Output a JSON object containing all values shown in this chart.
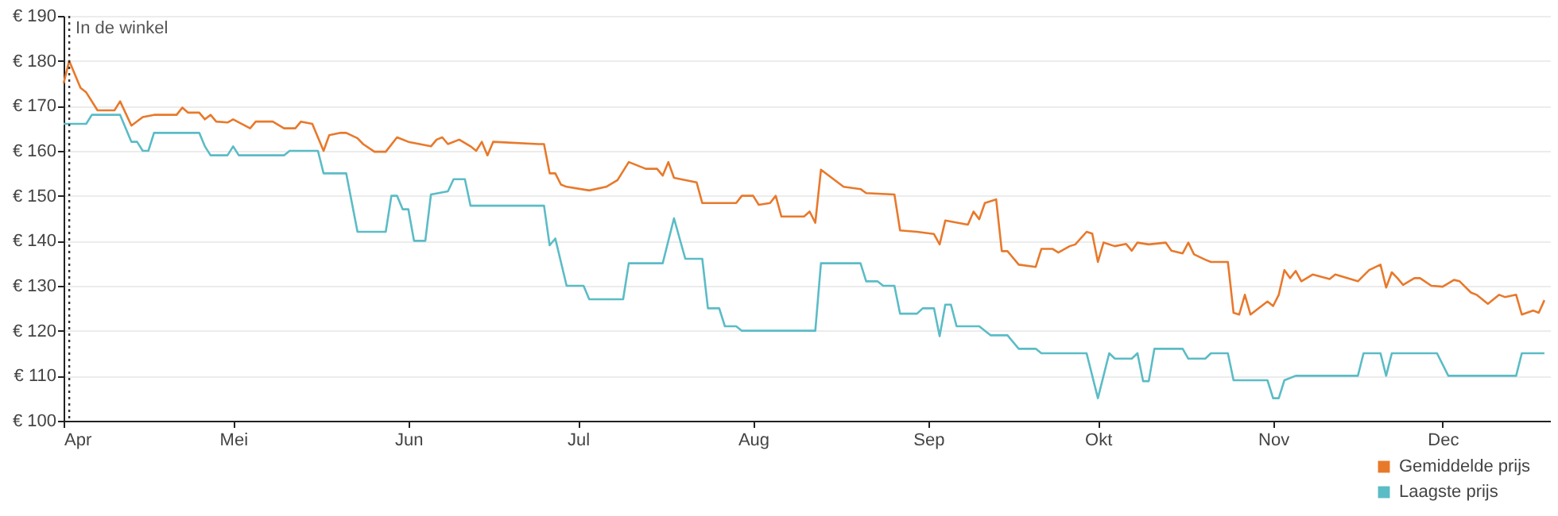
{
  "chart_data": {
    "type": "line",
    "xlim": [
      "--04-01",
      "--12-20"
    ],
    "xticks": [
      {
        "value": "--04-01",
        "label": "Apr"
      },
      {
        "value": "--05-01",
        "label": "Mei"
      },
      {
        "value": "--06-01",
        "label": "Jun"
      },
      {
        "value": "--07-01",
        "label": "Jul"
      },
      {
        "value": "--08-01",
        "label": "Aug"
      },
      {
        "value": "--09-01",
        "label": "Sep"
      },
      {
        "value": "--10-01",
        "label": "Okt"
      },
      {
        "value": "--11-01",
        "label": "Nov"
      },
      {
        "value": "--12-01",
        "label": "Dec"
      }
    ],
    "ylim": [
      100,
      190
    ],
    "yticks": [
      {
        "value": 100,
        "label": "€ 100"
      },
      {
        "value": 110,
        "label": "€ 110"
      },
      {
        "value": 120,
        "label": "€ 120"
      },
      {
        "value": 130,
        "label": "€ 130"
      },
      {
        "value": 140,
        "label": "€ 140"
      },
      {
        "value": 150,
        "label": "€ 150"
      },
      {
        "value": 160,
        "label": "€ 160"
      },
      {
        "value": 170,
        "label": "€ 170"
      },
      {
        "value": 180,
        "label": "€ 180"
      },
      {
        "value": 190,
        "label": "€ 190"
      }
    ],
    "grid": "y",
    "legend": "bottom right",
    "marker": "none",
    "line_style": "solid",
    "ref_lines": [
      {
        "axis": "x",
        "value": "--04-02",
        "label": "In de winkel",
        "color": "#333333",
        "line_style": "dotted"
      }
    ],
    "series": [
      {
        "name": "Gemiddelde prijs",
        "color": "#e8792b",
        "x": [
          "--04-01",
          "--04-02",
          "--04-04",
          "--04-05",
          "--04-07",
          "--04-10",
          "--04-11",
          "--04-13",
          "--04-15",
          "--04-17",
          "--04-21",
          "--04-22",
          "--04-23",
          "--04-25",
          "--04-26",
          "--04-27",
          "--04-28",
          "--04-30",
          "--05-01",
          "--05-04",
          "--05-05",
          "--05-08",
          "--05-10",
          "--05-12",
          "--05-13",
          "--05-15",
          "--05-17",
          "--05-18",
          "--05-20",
          "--05-21",
          "--05-23",
          "--05-24",
          "--05-26",
          "--05-28",
          "--05-30",
          "--06-01",
          "--06-03",
          "--06-05",
          "--06-06",
          "--06-07",
          "--06-08",
          "--06-10",
          "--06-12",
          "--06-13",
          "--06-14",
          "--06-15",
          "--06-16",
          "--06-24",
          "--06-25",
          "--06-26",
          "--06-27",
          "--06-28",
          "--06-29",
          "--07-03",
          "--07-06",
          "--07-08",
          "--07-10",
          "--07-13",
          "--07-15",
          "--07-16",
          "--07-17",
          "--07-18",
          "--07-22",
          "--07-23",
          "--07-29",
          "--07-30",
          "--08-01",
          "--08-02",
          "--08-04",
          "--08-05",
          "--08-06",
          "--08-10",
          "--08-11",
          "--08-12",
          "--08-13",
          "--08-17",
          "--08-20",
          "--08-21",
          "--08-26",
          "--08-27",
          "--08-30",
          "--09-02",
          "--09-03",
          "--09-04",
          "--09-08",
          "--09-09",
          "--09-10",
          "--09-11",
          "--09-13",
          "--09-14",
          "--09-15",
          "--09-17",
          "--09-20",
          "--09-21",
          "--09-23",
          "--09-24",
          "--09-26",
          "--09-27",
          "--09-29",
          "--09-30",
          "--10-01",
          "--10-02",
          "--10-04",
          "--10-06",
          "--10-07",
          "--10-08",
          "--10-10",
          "--10-13",
          "--10-14",
          "--10-16",
          "--10-17",
          "--10-18",
          "--10-20",
          "--10-21",
          "--10-24",
          "--10-25",
          "--10-26",
          "--10-27",
          "--10-28",
          "--10-31",
          "--11-01",
          "--11-02",
          "--11-03",
          "--11-04",
          "--11-05",
          "--11-06",
          "--11-08",
          "--11-11",
          "--11-12",
          "--11-16",
          "--11-18",
          "--11-20",
          "--11-21",
          "--11-22",
          "--11-23",
          "--11-24",
          "--11-26",
          "--11-27",
          "--11-29",
          "--12-01",
          "--12-03",
          "--12-04",
          "--12-06",
          "--12-07",
          "--12-09",
          "--12-11",
          "--12-12",
          "--12-14",
          "--12-15",
          "--12-17",
          "--12-18",
          "--12-19"
        ],
        "values": [
          175,
          180,
          174,
          173,
          169,
          169,
          171,
          165.6,
          167.5,
          168,
          168,
          169.6,
          168.5,
          168.5,
          167,
          168,
          166.5,
          166.3,
          167,
          165,
          166.5,
          166.5,
          165,
          165,
          166.5,
          166,
          160,
          163.5,
          164,
          164,
          162.8,
          161.5,
          159.8,
          159.8,
          163,
          162,
          161.5,
          161,
          162.5,
          163,
          161.5,
          162.5,
          161,
          160,
          162,
          159,
          162,
          161.5,
          161.5,
          155,
          155,
          152.5,
          152,
          151.2,
          152,
          153.5,
          157.5,
          156,
          156,
          154.5,
          157.5,
          154,
          153,
          148.4,
          148.4,
          150,
          150,
          148,
          148.4,
          150,
          145.4,
          145.4,
          146.5,
          144,
          155.8,
          152,
          151.5,
          150.6,
          150.3,
          142.3,
          142,
          141.5,
          139.2,
          144.5,
          143.6,
          146.5,
          144.8,
          148.4,
          149.2,
          137.7,
          137.7,
          134.7,
          134.2,
          138.2,
          138.2,
          137.4,
          138.8,
          139.2,
          142,
          141.6,
          135.3,
          139.6,
          138.8,
          139.3,
          137.8,
          139.6,
          139.2,
          139.6,
          137.8,
          137.2,
          139.6,
          137,
          135.8,
          135.3,
          135.3,
          124,
          123.6,
          128,
          123.6,
          126.5,
          125.5,
          128,
          133.5,
          131.7,
          133.3,
          131,
          132.5,
          131.5,
          132.5,
          131,
          133.5,
          134.7,
          129.6,
          133,
          131.7,
          130.2,
          131.7,
          131.7,
          130,
          129.8,
          131.3,
          131,
          128.5,
          128,
          126,
          128,
          127.5,
          128,
          123.6,
          124.5,
          124,
          126.8
        ]
      },
      {
        "name": "Laagste prijs",
        "color": "#5bbcc6",
        "x": [
          "--04-01",
          "--04-05",
          "--04-06",
          "--04-11",
          "--04-13",
          "--04-14",
          "--04-15",
          "--04-16",
          "--04-17",
          "--04-25",
          "--04-26",
          "--04-27",
          "--04-30",
          "--05-01",
          "--05-02",
          "--05-10",
          "--05-11",
          "--05-16",
          "--05-17",
          "--05-21",
          "--05-23",
          "--05-28",
          "--05-29",
          "--05-30",
          "--05-31",
          "--06-01",
          "--06-02",
          "--06-04",
          "--06-05",
          "--06-08",
          "--06-09",
          "--06-11",
          "--06-12",
          "--06-25",
          "--06-26",
          "--06-27",
          "--06-29",
          "--07-02",
          "--07-03",
          "--07-09",
          "--07-10",
          "--07-16",
          "--07-18",
          "--07-20",
          "--07-23",
          "--07-24",
          "--07-26",
          "--07-27",
          "--07-29",
          "--07-30",
          "--08-12",
          "--08-13",
          "--08-20",
          "--08-21",
          "--08-23",
          "--08-24",
          "--08-26",
          "--08-27",
          "--08-30",
          "--08-31",
          "--09-02",
          "--09-03",
          "--09-04",
          "--09-05",
          "--09-06",
          "--09-10",
          "--09-12",
          "--09-15",
          "--09-17",
          "--09-20",
          "--09-21",
          "--09-29",
          "--10-01",
          "--10-03",
          "--10-04",
          "--10-07",
          "--10-08",
          "--10-09",
          "--10-10",
          "--10-11",
          "--10-16",
          "--10-17",
          "--10-20",
          "--10-21",
          "--10-24",
          "--10-25",
          "--10-31",
          "--11-01",
          "--11-02",
          "--11-03",
          "--11-05",
          "--11-16",
          "--11-17",
          "--11-20",
          "--11-21",
          "--11-22",
          "--11-30",
          "--12-02",
          "--12-14",
          "--12-15",
          "--12-19"
        ],
        "values": [
          166,
          166,
          168,
          168,
          162,
          162,
          160,
          160,
          164,
          164,
          161,
          159,
          159,
          161,
          159,
          159,
          160,
          160,
          155,
          155,
          142,
          142,
          150,
          150,
          147,
          147,
          140,
          140,
          150.3,
          151,
          153.7,
          153.7,
          147.8,
          147.8,
          139,
          140.5,
          130,
          130,
          127,
          127,
          135,
          135,
          145,
          136,
          136,
          125,
          125,
          121,
          121,
          120,
          120,
          135,
          135,
          131,
          131,
          130,
          130,
          123.8,
          123.8,
          125,
          125,
          118.8,
          125.8,
          125.8,
          121,
          121,
          119,
          119,
          116,
          116,
          115,
          115,
          105,
          115,
          113.8,
          113.8,
          115,
          108.8,
          108.8,
          116,
          116,
          113.8,
          113.8,
          115,
          115,
          109,
          109,
          105,
          105,
          109,
          110,
          110,
          115,
          115,
          110,
          115,
          115,
          110,
          110,
          115,
          115
        ]
      }
    ]
  }
}
